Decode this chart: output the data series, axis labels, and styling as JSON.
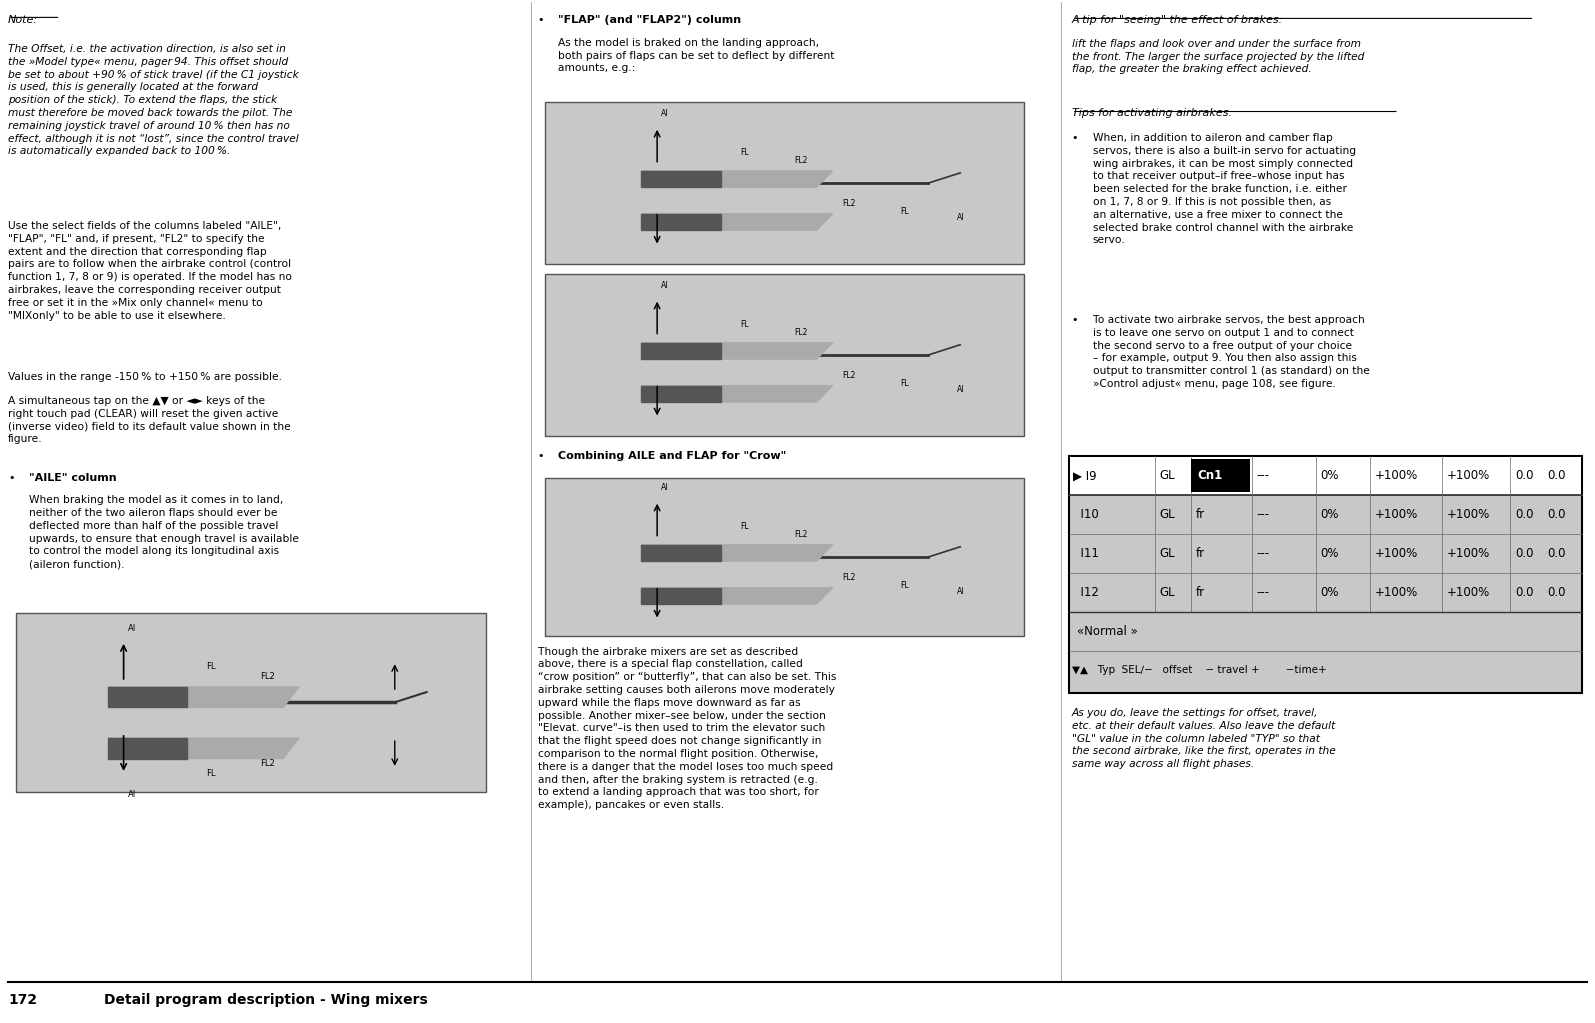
{
  "bg_color": "#ffffff",
  "note_text": "Note:",
  "note_body": "The Offset, i.e. the activation direction, is also set in\nthe »Model type« menu, pager 94. This offset should\nbe set to about +90 % of stick travel (if the C1 joystick\nis used, this is generally located at the forward\nposition of the stick). To extend the flaps, the stick\nmust therefore be moved back towards the pilot. The\nremaining joystick travel of around 10 % then has no\neffect, although it is not “lost”, since the control travel\nis automatically expanded back to 100 %.",
  "para1": "Use the select fields of the columns labeled \"AILE\",\n\"FLAP\", \"FL\" and, if present, \"FL2\" to specify the\nextent and the direction that corresponding flap\npairs are to follow when the airbrake control (control\nfunction 1, 7, 8 or 9) is operated. If the model has no\nairbrakes, leave the corresponding receiver output\nfree or set it in the »Mix only channel« menu to\n\"MIXonly\" to be able to use it elsewhere.",
  "para2": "Values in the range -150 % to +150 % are possible.",
  "para3": "A simultaneous tap on the ▲▼ or ◄► keys of the\nright touch pad (CLEAR) will reset the given active\n(inverse video) field to its default value shown in the\nfigure.",
  "bullet_aile_title": "\"AILE\" column",
  "bullet_aile_text": "When braking the model as it comes in to land,\nneither of the two aileron flaps should ever be\ndeflected more than half of the possible travel\nupwards, to ensure that enough travel is available\nto control the model along its longitudinal axis\n(aileron function).",
  "mid_bullet1_title": "\"FLAP\" (and \"FLAP2\") column",
  "mid_bullet1_text": "As the model is braked on the landing approach,\nboth pairs of flaps can be set to deflect by different\namounts, e.g.:",
  "mid_bullet2_title": "Combining AILE and FLAP for \"Crow\"",
  "mid_crow_text": "Though the airbrake mixers are set as described\nabove, there is a special flap constellation, called\n“crow position” or “butterfly”, that can also be set. This\nairbrake setting causes both ailerons move moderately\nupward while the flaps move downward as far as\npossible. Another mixer–see below, under the section\n\"Elevat. curve\"–is then used to trim the elevator such\nthat the flight speed does not change significantly in\ncomparison to the normal flight position. Otherwise,\nthere is a danger that the model loses too much speed\nand then, after the braking system is retracted (e.g.\nto extend a landing approach that was too short, for\nexample), pancakes or even stalls.",
  "right_seeing_title": "A tip for \"seeing\" the effect of brakes:",
  "right_seeing_text": "lift the flaps and look over and under the surface from\nthe front. The larger the surface projected by the lifted\nflap, the greater the braking effect achieved.",
  "right_tips_title": "Tips for activating airbrakes:",
  "right_bullet1": "When, in addition to aileron and camber flap\nservos, there is also a built-in servo for actuating\nwing airbrakes, it can be most simply connected\nto that receiver output–if free–whose input has\nbeen selected for the brake function, i.e. either\non 1, 7, 8 or 9. If this is not possible then, as\nan alternative, use a free mixer to connect the\nselected brake control channel with the airbrake\nservo.",
  "right_bullet2": "To activate two airbrake servos, the best approach\nis to leave one servo on output 1 and to connect\nthe second servo to a free output of your choice\n– for example, output 9. You then also assign this\noutput to transmitter control 1 (as standard) on the\n»Control adjust« menu, page 108, see figure.",
  "table_rows": [
    {
      "label": "▶ I9",
      "gl": "GL",
      "cn": "Cn1",
      "dash": "---",
      "p0": "0%",
      "p1": "+100%",
      "p2": "+100%",
      "t1": "0.0",
      "t2": "0.0",
      "highlight": true
    },
    {
      "label": "  I10",
      "gl": "GL",
      "cn": "fr",
      "dash": "---",
      "p0": "0%",
      "p1": "+100%",
      "p2": "+100%",
      "t1": "0.0",
      "t2": "0.0",
      "highlight": false
    },
    {
      "label": "  I11",
      "gl": "GL",
      "cn": "fr",
      "dash": "---",
      "p0": "0%",
      "p1": "+100%",
      "p2": "+100%",
      "t1": "0.0",
      "t2": "0.0",
      "highlight": false
    },
    {
      "label": "  I12",
      "gl": "GL",
      "cn": "fr",
      "dash": "---",
      "p0": "0%",
      "p1": "+100%",
      "p2": "+100%",
      "t1": "0.0",
      "t2": "0.0",
      "highlight": false
    }
  ],
  "table_footer1": "«Normal »",
  "table_footer2": "▼▲   Typ  SEL∕−   offset    − travel +        −time+",
  "right_last_text": "As you do, leave the settings for offset, travel,\netc. at their default values. Also leave the default\n\"GL\" value in the column labeled \"TYP\" so that\nthe second airbrake, like the first, operates in the\nsame way across all flight phases.",
  "page_num": "172",
  "page_title": "Detail program description - Wing mixers",
  "table_bg": "#c8c8c8",
  "gray_box_bg": "#c8c8c8"
}
